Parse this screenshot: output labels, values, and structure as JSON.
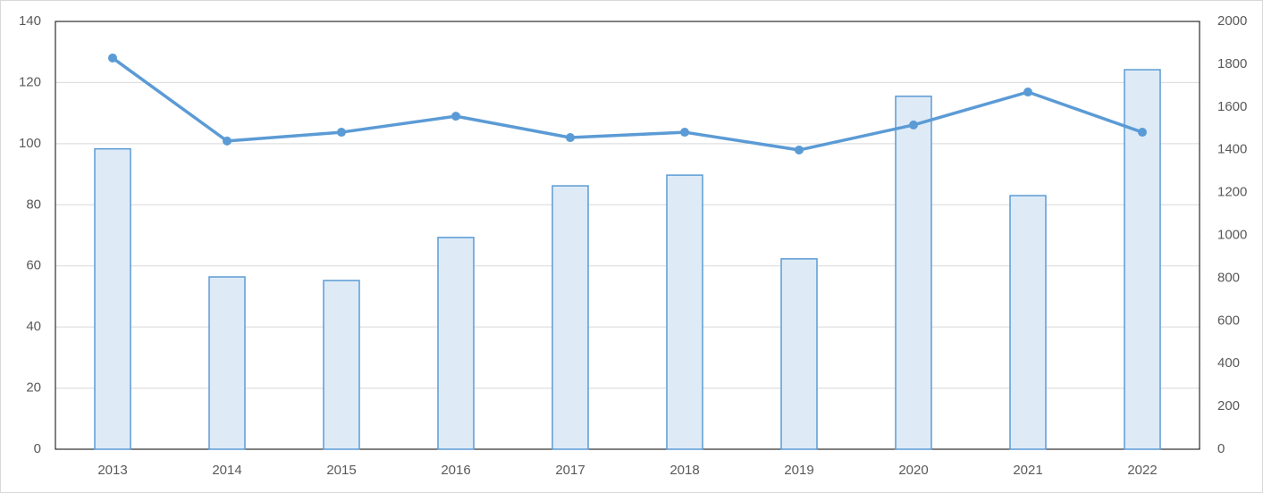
{
  "chart_data": {
    "type": "bar-line",
    "categories": [
      "2013",
      "2014",
      "2015",
      "2016",
      "2017",
      "2018",
      "2019",
      "2020",
      "2021",
      "2022"
    ],
    "series": [
      {
        "type": "bar",
        "color": "#5b9bd5",
        "fill": "#deebf7",
        "values": [
          98.3,
          56.4,
          55.2,
          69.3,
          86.2,
          89.7,
          62.3,
          115.5,
          83.0,
          124.2
        ]
      },
      {
        "type": "line",
        "axis": "y2",
        "color": "#5b9bd5",
        "values": [
          1829,
          1441,
          1482,
          1557,
          1457,
          1482,
          1399,
          1516,
          1670,
          1482
        ]
      }
    ],
    "ylim": [
      0,
      140
    ],
    "yticks": [
      0,
      20,
      40,
      60,
      80,
      100,
      120,
      140
    ],
    "y2lim": [
      0,
      2000
    ],
    "y2ticks": [
      0,
      200,
      400,
      600,
      800,
      1000,
      1200,
      1400,
      1600,
      1800,
      2000
    ],
    "grid": true
  }
}
